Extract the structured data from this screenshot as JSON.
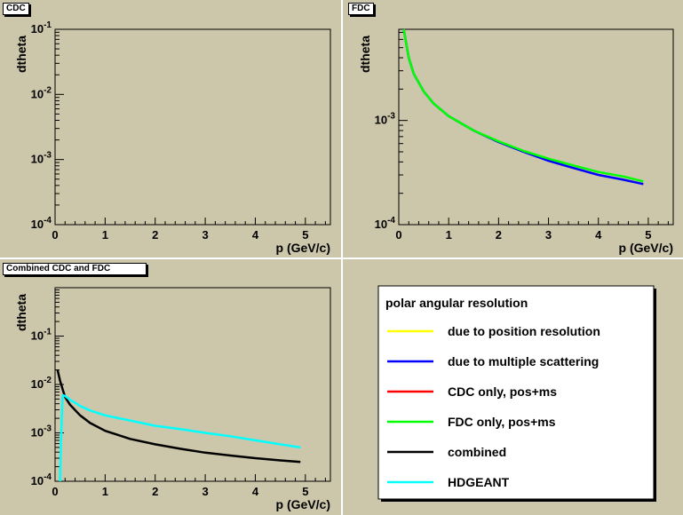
{
  "colors": {
    "pad_background": "#ccc6aa",
    "frame_background": "#ccc6aa",
    "legend_background": "#ffffff",
    "axis": "#000000",
    "position_resolution": "#ffff00",
    "multiple_scattering": "#0000ff",
    "cdc_pos_ms": "#ff0000",
    "fdc_pos_ms": "#00ff00",
    "combined": "#000000",
    "hdgeant": "#00ffff"
  },
  "legend": {
    "title": "polar angular resolution",
    "entries": [
      {
        "label": "due to position resolution",
        "color": "#ffff00"
      },
      {
        "label": "due to multiple scattering",
        "color": "#0000ff"
      },
      {
        "label": "CDC only, pos+ms",
        "color": "#ff0000"
      },
      {
        "label": "FDC only, pos+ms",
        "color": "#00ff00"
      },
      {
        "label": "combined",
        "color": "#000000"
      },
      {
        "label": "HDGEANT",
        "color": "#00ffff"
      }
    ]
  },
  "chart_data": [
    {
      "type": "line",
      "panel_label": "CDC",
      "xlabel": "p (GeV/c)",
      "ylabel": "dtheta",
      "xlim": [
        0,
        5.5
      ],
      "ylim": [
        0.0001,
        0.1
      ],
      "yscale": "log",
      "xticks": [
        "0",
        "1",
        "2",
        "3",
        "4",
        "5"
      ],
      "yticks": [
        {
          "m": "10",
          "e": "-4"
        },
        {
          "m": "10",
          "e": "-3"
        },
        {
          "m": "10",
          "e": "-2"
        },
        {
          "m": "10",
          "e": "-1"
        }
      ],
      "series": []
    },
    {
      "type": "line",
      "panel_label": "FDC",
      "xlabel": "p (GeV/c)",
      "ylabel": "dtheta",
      "xlim": [
        0,
        5.5
      ],
      "ylim": [
        0.0001,
        0.0075
      ],
      "yscale": "log",
      "xticks": [
        "0",
        "1",
        "2",
        "3",
        "4",
        "5"
      ],
      "yticks": [
        {
          "m": "10",
          "e": "-4"
        },
        {
          "m": "10",
          "e": "-3"
        }
      ],
      "series": [
        {
          "color": "#0000ff",
          "x": [
            0.1,
            0.2,
            0.3,
            0.5,
            0.7,
            1,
            1.5,
            2,
            2.5,
            3,
            3.5,
            4,
            4.5,
            4.9
          ],
          "y": [
            0.0075,
            0.004,
            0.0028,
            0.0019,
            0.00145,
            0.0011,
            0.0008,
            0.00062,
            0.0005,
            0.00041,
            0.00035,
            0.0003,
            0.00027,
            0.000245
          ]
        },
        {
          "color": "#00ff00",
          "x": [
            0.1,
            0.2,
            0.3,
            0.5,
            0.7,
            1,
            1.5,
            2,
            2.5,
            3,
            3.5,
            4,
            4.5,
            4.9
          ],
          "y": [
            0.0075,
            0.004,
            0.0028,
            0.0019,
            0.00145,
            0.0011,
            0.0008,
            0.00063,
            0.00051,
            0.00043,
            0.00037,
            0.00032,
            0.00029,
            0.00026
          ]
        }
      ]
    },
    {
      "type": "line",
      "panel_label": "Combined CDC and FDC",
      "xlabel": "p (GeV/c)",
      "ylabel": "dtheta",
      "xlim": [
        0,
        5.5
      ],
      "ylim": [
        0.0001,
        1
      ],
      "yscale": "log",
      "xticks": [
        "0",
        "1",
        "2",
        "3",
        "4",
        "5"
      ],
      "yticks": [
        {
          "m": "10",
          "e": "-4"
        },
        {
          "m": "10",
          "e": "-3"
        },
        {
          "m": "10",
          "e": "-2"
        },
        {
          "m": "10",
          "e": "-1"
        }
      ],
      "series": [
        {
          "color": "#000000",
          "x": [
            0.05,
            0.1,
            0.15,
            0.2,
            0.3,
            0.5,
            0.7,
            1,
            1.5,
            2,
            2.5,
            3,
            3.5,
            4,
            4.5,
            4.9
          ],
          "y": [
            0.02,
            0.012,
            0.008,
            0.0055,
            0.0038,
            0.0023,
            0.0016,
            0.0011,
            0.00075,
            0.00058,
            0.00047,
            0.00039,
            0.00034,
            0.0003,
            0.00027,
            0.00025
          ]
        },
        {
          "color": "#00ffff",
          "x": [
            0.1,
            0.12,
            0.15,
            0.2,
            0.3,
            0.4,
            0.5,
            0.7,
            1,
            1.5,
            2,
            2.5,
            3,
            3.5,
            4,
            4.5,
            4.9
          ],
          "y": [
            0.0001,
            0.0008,
            0.006,
            0.0058,
            0.0048,
            0.0042,
            0.0036,
            0.0029,
            0.0023,
            0.0018,
            0.0014,
            0.0012,
            0.001,
            0.00085,
            0.0007,
            0.00058,
            0.0005
          ]
        }
      ]
    }
  ]
}
